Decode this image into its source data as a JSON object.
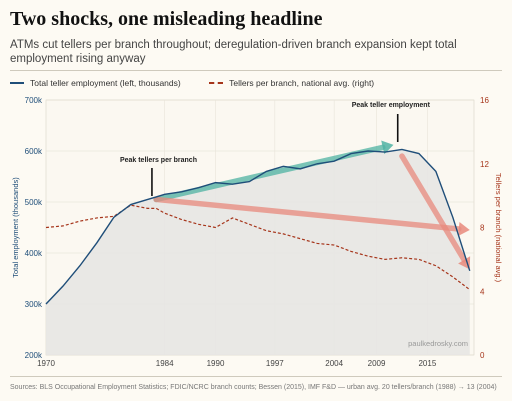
{
  "header": {
    "title": "Two shocks, one misleading headline",
    "subtitle": "ATMs cut tellers per branch throughout; deregulation-driven branch expansion kept total employment rising anyway"
  },
  "legend": {
    "employment_label": "Total teller employment (left, thousands)",
    "tellers_label": "Tellers per branch, national avg. (right)"
  },
  "source_text": "Sources: BLS Occupational Employment Statistics; FDIC/NCRC branch counts; Bessen (2015), IMF F&D — urban avg. 20 tellers/branch (1988) → 13 (2004)",
  "chart_data": {
    "type": "line",
    "title": "Two shocks, one misleading headline",
    "x_ticks": [
      1970,
      1984,
      1990,
      1997,
      2004,
      2009,
      2015
    ],
    "xlim": [
      1970,
      2020.5
    ],
    "ylabel": "Total employment (thousands)",
    "y2label": "Tellers per branch (national avg.)",
    "ylim": [
      200,
      700
    ],
    "y_ticks": [
      "200k",
      "300k",
      "400k",
      "500k",
      "600k",
      "700k"
    ],
    "y2lim": [
      0,
      16
    ],
    "y2_ticks": [
      0,
      4,
      8,
      12,
      16
    ],
    "grid": true,
    "legend_position": "top-left",
    "series": [
      {
        "name": "Total teller employment (left, thousands)",
        "axis": "left",
        "color": "#1f4e79",
        "style": "solid",
        "x": [
          1970,
          1972,
          1974,
          1976,
          1978,
          1980,
          1982,
          1983,
          1984,
          1986,
          1988,
          1990,
          1992,
          1994,
          1996,
          1998,
          2000,
          2002,
          2004,
          2006,
          2008,
          2010,
          2012,
          2014,
          2016,
          2018,
          2020
        ],
        "values": [
          300,
          335,
          375,
          420,
          470,
          495,
          505,
          510,
          515,
          520,
          528,
          538,
          535,
          540,
          560,
          570,
          565,
          575,
          580,
          595,
          600,
          598,
          603,
          595,
          560,
          470,
          365
        ]
      },
      {
        "name": "Tellers per branch, national avg. (right)",
        "axis": "right",
        "color": "#a6351b",
        "style": "dashed",
        "x": [
          1970,
          1972,
          1974,
          1976,
          1978,
          1980,
          1982,
          1983,
          1984,
          1986,
          1988,
          1990,
          1992,
          1994,
          1996,
          1998,
          2000,
          2002,
          2004,
          2006,
          2008,
          2010,
          2012,
          2014,
          2016,
          2018,
          2020
        ],
        "values": [
          8.0,
          8.1,
          8.4,
          8.6,
          8.7,
          9.4,
          9.2,
          9.2,
          8.9,
          8.5,
          8.2,
          8.0,
          8.6,
          8.2,
          7.8,
          7.6,
          7.3,
          7.0,
          6.9,
          6.5,
          6.2,
          6.0,
          6.1,
          6.0,
          5.6,
          4.9,
          4.1
        ]
      }
    ],
    "annotations": [
      {
        "text": "Peak tellers per branch",
        "x": 1982.5
      },
      {
        "text": "Peak teller employment",
        "x": 2011.5
      },
      {
        "text": "paulkedrosky.com"
      }
    ],
    "trend_arrows": [
      {
        "color": "#4fb3a3",
        "from": [
          1983,
          505
        ],
        "to": [
          2011,
          612
        ]
      },
      {
        "color": "#e88a7d",
        "from": [
          1983,
          505
        ],
        "to": [
          2020,
          445
        ]
      },
      {
        "color": "#e88a7d",
        "from": [
          2012,
          590
        ],
        "to": [
          2020,
          368
        ]
      }
    ]
  }
}
